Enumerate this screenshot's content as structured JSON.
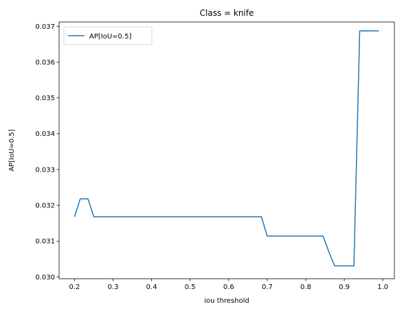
{
  "chart_data": {
    "type": "line",
    "title": "Class = knife",
    "xlabel": "iou threshold",
    "ylabel": "AP[IoU=0.5]",
    "xlim": [
      0.16,
      1.03
    ],
    "ylim": [
      0.02995,
      0.03712
    ],
    "xticks": [
      "0.2",
      "0.3",
      "0.4",
      "0.5",
      "0.6",
      "0.7",
      "0.8",
      "0.9",
      "1.0"
    ],
    "yticks": [
      "0.030",
      "0.031",
      "0.032",
      "0.033",
      "0.034",
      "0.035",
      "0.036",
      "0.037"
    ],
    "grid": false,
    "legend_position": "top-left",
    "series": [
      {
        "name": "AP[IoU=0.5]",
        "color": "#1f77b4",
        "x": [
          0.2,
          0.215,
          0.235,
          0.25,
          0.685,
          0.7,
          0.845,
          0.86,
          0.875,
          0.925,
          0.94,
          0.99
        ],
        "y": [
          0.03168,
          0.03218,
          0.03218,
          0.03168,
          0.03168,
          0.03114,
          0.03114,
          0.0307,
          0.03031,
          0.03031,
          0.03687,
          0.03687
        ]
      }
    ]
  }
}
